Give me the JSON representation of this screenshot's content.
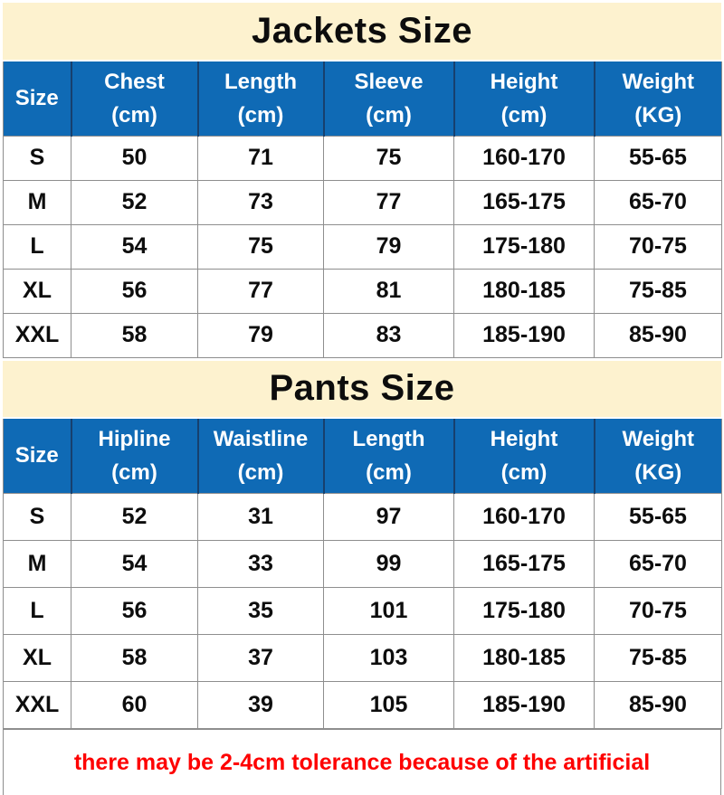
{
  "colors": {
    "banner_bg": "#fdf2cf",
    "header_bg": "#0f6ab5",
    "header_divider": "#17406e",
    "grid_line": "#8e8e8e",
    "note_red": "#fe0000",
    "text_black": "#0d0d0d"
  },
  "jackets": {
    "title": "Jackets Size",
    "headers": [
      {
        "label": "Size",
        "unit": ""
      },
      {
        "label": "Chest",
        "unit": "(cm)"
      },
      {
        "label": "Length",
        "unit": "(cm)"
      },
      {
        "label": "Sleeve",
        "unit": "(cm)"
      },
      {
        "label": "Height",
        "unit": "(cm)"
      },
      {
        "label": "Weight",
        "unit": "(KG)"
      }
    ],
    "rows": [
      [
        "S",
        "50",
        "71",
        "75",
        "160-170",
        "55-65"
      ],
      [
        "M",
        "52",
        "73",
        "77",
        "165-175",
        "65-70"
      ],
      [
        "L",
        "54",
        "75",
        "79",
        "175-180",
        "70-75"
      ],
      [
        "XL",
        "56",
        "77",
        "81",
        "180-185",
        "75-85"
      ],
      [
        "XXL",
        "58",
        "79",
        "83",
        "185-190",
        "85-90"
      ]
    ]
  },
  "pants": {
    "title": "Pants Size",
    "headers": [
      {
        "label": "Size",
        "unit": ""
      },
      {
        "label": "Hipline",
        "unit": "(cm)"
      },
      {
        "label": "Waistline",
        "unit": "(cm)"
      },
      {
        "label": "Length",
        "unit": "(cm)"
      },
      {
        "label": "Height",
        "unit": "(cm)"
      },
      {
        "label": "Weight",
        "unit": "(KG)"
      }
    ],
    "rows": [
      [
        "S",
        "52",
        "31",
        "97",
        "160-170",
        "55-65"
      ],
      [
        "M",
        "54",
        "33",
        "99",
        "165-175",
        "65-70"
      ],
      [
        "L",
        "56",
        "35",
        "101",
        "175-180",
        "70-75"
      ],
      [
        "XL",
        "58",
        "37",
        "103",
        "180-185",
        "75-85"
      ],
      [
        "XXL",
        "60",
        "39",
        "105",
        "185-190",
        "85-90"
      ]
    ]
  },
  "footer": {
    "note": "there may be 2-4cm tolerance because of the artificial"
  }
}
